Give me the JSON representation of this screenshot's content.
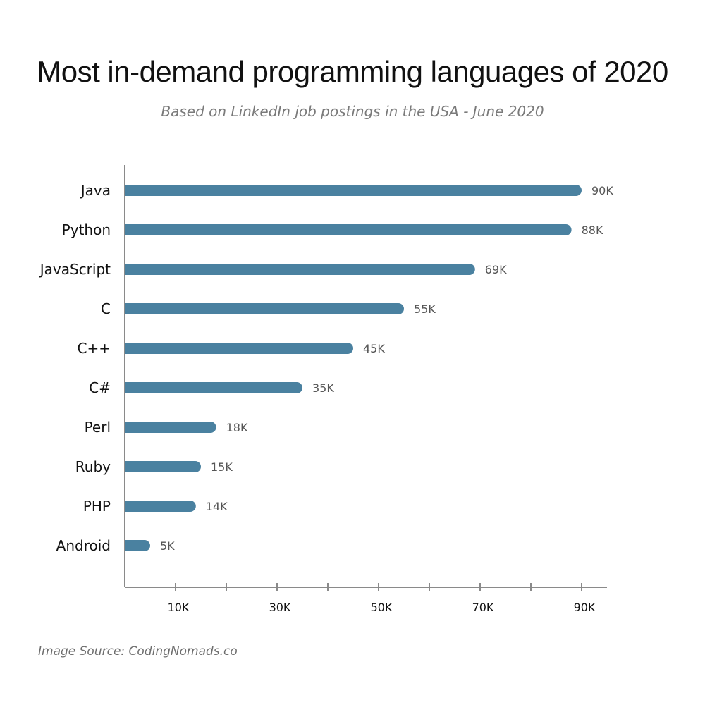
{
  "chart_data": {
    "type": "bar",
    "orientation": "horizontal",
    "title": "Most in-demand programming languages of 2020",
    "subtitle": "Based on LinkedIn job postings in the USA - June 2020",
    "categories": [
      "Java",
      "Python",
      "JavaScript",
      "C",
      "C++",
      "C#",
      "Perl",
      "Ruby",
      "PHP",
      "Android"
    ],
    "values": [
      90,
      88,
      69,
      55,
      45,
      35,
      18,
      15,
      14,
      5
    ],
    "value_labels": [
      "90K",
      "88K",
      "69K",
      "55K",
      "45K",
      "35K",
      "18K",
      "15K",
      "14K",
      "5K"
    ],
    "xlim": [
      0,
      95
    ],
    "x_ticks": [
      10,
      20,
      30,
      40,
      50,
      60,
      70,
      80,
      90
    ],
    "x_tick_labels": [
      {
        "value": 10,
        "label": "10K"
      },
      {
        "value": 30,
        "label": "30K"
      },
      {
        "value": 50,
        "label": "50K"
      },
      {
        "value": 70,
        "label": "70K"
      },
      {
        "value": 90,
        "label": "90K"
      }
    ],
    "xlabel": "",
    "ylabel": "",
    "grid": false,
    "bar_color": "#4a81a0"
  },
  "source": "Image Source: CodingNomads.co"
}
